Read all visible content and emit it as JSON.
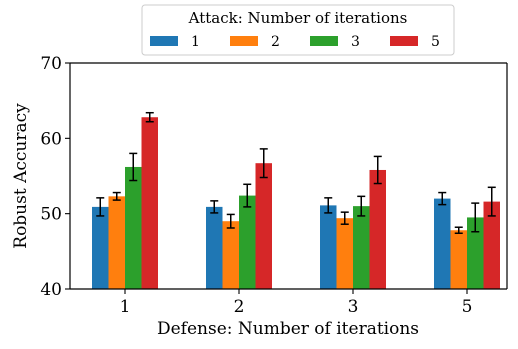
{
  "chart_data": {
    "type": "bar",
    "title": "",
    "xlabel": "Defense: Number of iterations",
    "ylabel": "Robust Accuracy",
    "categories": [
      "1",
      "2",
      "3",
      "5"
    ],
    "ylim": [
      40,
      70
    ],
    "yticks": [
      40,
      50,
      60,
      70
    ],
    "grid": false,
    "legend": {
      "title": "Attack: Number of iterations",
      "placement": "top-center, above plot",
      "orientation": "horizontal"
    },
    "series": [
      {
        "name": "1",
        "color": "#1f77b4",
        "values": [
          50.9,
          50.9,
          51.1,
          52.0
        ],
        "errors": [
          1.2,
          0.8,
          1.0,
          0.8
        ]
      },
      {
        "name": "2",
        "color": "#ff7f0e",
        "values": [
          52.3,
          49.0,
          49.4,
          47.8
        ],
        "errors": [
          0.5,
          0.9,
          0.8,
          0.4
        ]
      },
      {
        "name": "3",
        "color": "#2ca02c",
        "values": [
          56.2,
          52.4,
          51.0,
          49.5
        ],
        "errors": [
          1.8,
          1.5,
          1.3,
          1.9
        ]
      },
      {
        "name": "5",
        "color": "#d62728",
        "values": [
          62.8,
          56.7,
          55.8,
          51.6
        ],
        "errors": [
          0.6,
          1.9,
          1.8,
          1.9
        ]
      }
    ]
  }
}
